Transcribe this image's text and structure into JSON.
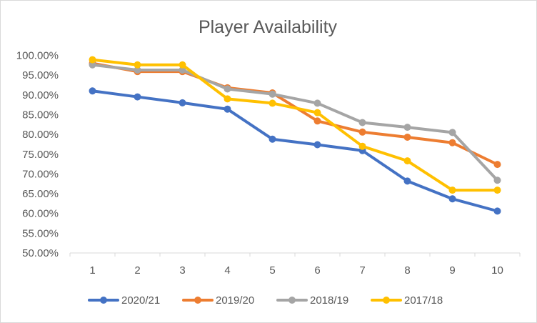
{
  "chart_data": {
    "type": "line",
    "title": "Player Availability",
    "xlabel": "",
    "ylabel": "",
    "x": [
      "1",
      "2",
      "3",
      "4",
      "5",
      "6",
      "7",
      "8",
      "9",
      "10"
    ],
    "ylim": [
      0.5,
      1.0
    ],
    "yticks": [
      0.5,
      0.55,
      0.6,
      0.65,
      0.7,
      0.75,
      0.8,
      0.85,
      0.9,
      0.95,
      1.0
    ],
    "ytick_labels": [
      "50.00%",
      "55.00%",
      "60.00%",
      "65.00%",
      "70.00%",
      "75.00%",
      "80.00%",
      "85.00%",
      "90.00%",
      "95.00%",
      "100.00%"
    ],
    "grid": false,
    "legend_position": "bottom",
    "series": [
      {
        "name": "2020/21",
        "color": "#4472c4",
        "values": [
          0.91,
          0.895,
          0.88,
          0.864,
          0.788,
          0.774,
          0.759,
          0.682,
          0.637,
          0.606
        ]
      },
      {
        "name": "2019/20",
        "color": "#ed7d31",
        "values": [
          0.98,
          0.959,
          0.959,
          0.918,
          0.905,
          0.834,
          0.806,
          0.793,
          0.779,
          0.724
        ]
      },
      {
        "name": "2018/19",
        "color": "#a5a5a5",
        "values": [
          0.976,
          0.963,
          0.963,
          0.915,
          0.902,
          0.879,
          0.83,
          0.818,
          0.805,
          0.684
        ]
      },
      {
        "name": "2017/18",
        "color": "#ffc000",
        "values": [
          0.989,
          0.976,
          0.976,
          0.89,
          0.879,
          0.855,
          0.77,
          0.733,
          0.659,
          0.659
        ]
      }
    ]
  }
}
